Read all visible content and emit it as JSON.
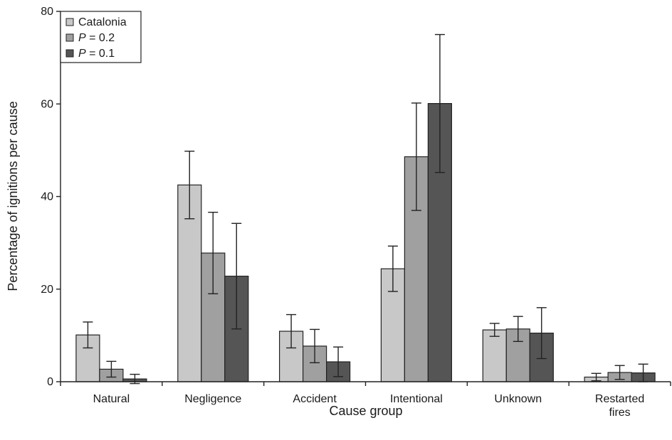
{
  "chart_data": {
    "type": "bar",
    "title": "",
    "xlabel": "Cause group",
    "ylabel": "Percentage of ignitions per cause",
    "ylim": [
      0,
      80
    ],
    "yticks": [
      0,
      20,
      40,
      60,
      80
    ],
    "grid": false,
    "legend_position": "top-left",
    "categories": [
      [
        "Natural"
      ],
      [
        "Negligence"
      ],
      [
        "Accident"
      ],
      [
        "Intentional"
      ],
      [
        "Unknown"
      ],
      [
        "Restarted",
        "fires"
      ]
    ],
    "series": [
      {
        "name": "Catalonia",
        "legend_italic": "",
        "legend_rest": "Catalonia",
        "color": "#c8c8c8",
        "values": [
          10.1,
          42.5,
          10.9,
          24.4,
          11.2,
          1.0
        ],
        "error_low": [
          7.3,
          35.2,
          7.3,
          19.5,
          9.8,
          0.2
        ],
        "error_high": [
          12.9,
          49.8,
          14.5,
          29.3,
          12.6,
          1.8
        ]
      },
      {
        "name": "P = 0.2",
        "legend_italic": "P",
        "legend_rest": " = 0.2",
        "color": "#a0a0a0",
        "values": [
          2.7,
          27.8,
          7.7,
          48.6,
          11.4,
          2.0
        ],
        "error_low": [
          1.0,
          19.0,
          4.1,
          37.0,
          8.7,
          0.5
        ],
        "error_high": [
          4.4,
          36.6,
          11.3,
          60.2,
          14.1,
          3.5
        ]
      },
      {
        "name": "P = 0.1",
        "legend_italic": "P",
        "legend_rest": " = 0.1",
        "color": "#555555",
        "values": [
          0.6,
          22.8,
          4.3,
          60.1,
          10.5,
          1.9
        ],
        "error_low": [
          -0.4,
          11.4,
          1.1,
          45.2,
          5.0,
          0.0
        ],
        "error_high": [
          1.6,
          34.2,
          7.5,
          75.0,
          16.0,
          3.8
        ]
      }
    ]
  }
}
